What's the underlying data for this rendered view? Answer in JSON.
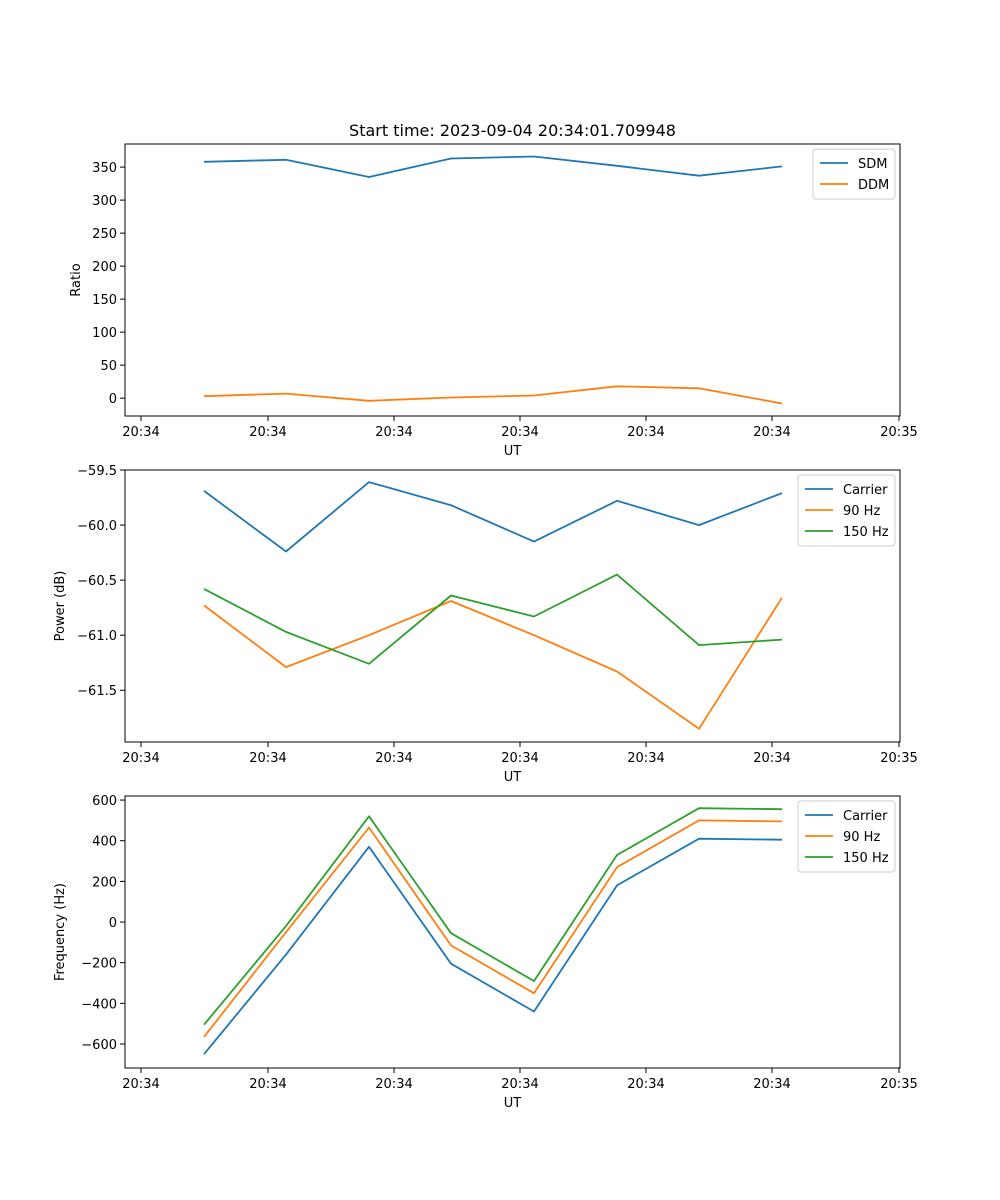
{
  "chart_data": [
    {
      "type": "line",
      "title": "Start time: 2023-09-04 20:34:01.709948",
      "xlabel": "UT",
      "ylabel": "Ratio",
      "x_tick_labels": [
        "20:34",
        "20:34",
        "20:34",
        "20:34",
        "20:34",
        "20:34",
        "20:34"
      ],
      "x_tick_end_label": "20:35",
      "y_ticks": [
        0,
        50,
        100,
        150,
        200,
        250,
        300,
        350
      ],
      "y_tick_labels": [
        "0",
        "50",
        "100",
        "150",
        "200",
        "250",
        "300",
        "350"
      ],
      "ylim": [
        -27,
        385
      ],
      "legend_position": "top-right",
      "series": [
        {
          "name": "SDM",
          "color": "#1f77b4",
          "values": [
            358,
            361,
            335,
            363,
            366,
            352,
            337,
            351
          ]
        },
        {
          "name": "DDM",
          "color": "#ff7f0e",
          "values": [
            3,
            7,
            -4,
            1,
            4,
            18,
            15,
            -8
          ]
        }
      ]
    },
    {
      "type": "line",
      "title": "",
      "xlabel": "UT",
      "ylabel": "Power (dB)",
      "x_tick_labels": [
        "20:34",
        "20:34",
        "20:34",
        "20:34",
        "20:34",
        "20:34",
        "20:34"
      ],
      "x_tick_end_label": "20:35",
      "y_ticks": [
        -61.5,
        -61.0,
        -60.5,
        -60.0,
        -59.5
      ],
      "y_tick_labels": [
        "−61.5",
        "−61.0",
        "−60.5",
        "−60.0",
        "−59.5"
      ],
      "ylim": [
        -61.97,
        -59.5
      ],
      "legend_position": "top-right",
      "series": [
        {
          "name": "Carrier",
          "color": "#1f77b4",
          "values": [
            -59.69,
            -60.24,
            -59.61,
            -59.82,
            -60.15,
            -59.78,
            -60.0,
            -59.71
          ]
        },
        {
          "name": "90 Hz",
          "color": "#ff7f0e",
          "values": [
            -60.73,
            -61.29,
            -61.0,
            -60.69,
            -61.0,
            -61.33,
            -61.85,
            -60.66
          ]
        },
        {
          "name": "150 Hz",
          "color": "#2ca02c",
          "values": [
            -60.58,
            -60.97,
            -61.26,
            -60.64,
            -60.83,
            -60.45,
            -61.09,
            -61.04
          ]
        }
      ]
    },
    {
      "type": "line",
      "title": "",
      "xlabel": "UT",
      "ylabel": "Frequency (Hz)",
      "x_tick_labels": [
        "20:34",
        "20:34",
        "20:34",
        "20:34",
        "20:34",
        "20:34",
        "20:34"
      ],
      "x_tick_end_label": "20:35",
      "y_ticks": [
        -600,
        -400,
        -200,
        0,
        200,
        400,
        600
      ],
      "y_tick_labels": [
        "−600",
        "−400",
        "−200",
        "0",
        "200",
        "400",
        "600"
      ],
      "ylim": [
        -718,
        620
      ],
      "legend_position": "top-right",
      "series": [
        {
          "name": "Carrier",
          "color": "#1f77b4",
          "values": [
            -650,
            -160,
            370,
            -205,
            -440,
            180,
            410,
            405
          ]
        },
        {
          "name": "90 Hz",
          "color": "#ff7f0e",
          "values": [
            -565,
            -50,
            465,
            -115,
            -350,
            270,
            500,
            495
          ]
        },
        {
          "name": "150 Hz",
          "color": "#2ca02c",
          "values": [
            -505,
            -20,
            520,
            -55,
            -290,
            330,
            560,
            555
          ]
        }
      ]
    }
  ]
}
